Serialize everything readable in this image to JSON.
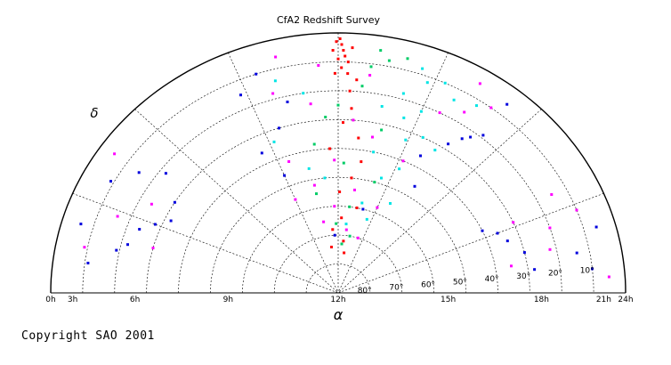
{
  "copyright": "Copyright SAO 2001",
  "chart_data": {
    "type": "scatter",
    "title": "CfA2 Redshift Survey",
    "xlabel": "α",
    "ylabel": "δ",
    "projection": "hemisphere (polar)",
    "x_ticks": [
      "24h",
      "21h",
      "18h",
      "15h",
      "12h",
      "9h",
      "6h",
      "3h",
      "0h"
    ],
    "y_ticks": [
      "10°",
      "20°",
      "30°",
      "40°",
      "50°",
      "60°",
      "70°",
      "80°"
    ],
    "xlim": [
      24,
      0
    ],
    "ylim": [
      0,
      90
    ],
    "grid": true,
    "colors": [
      "#ff0000",
      "#00cc66",
      "#00e5e5",
      "#0000dd",
      "#ff00ff"
    ],
    "series": [
      {
        "color": "#ff0000",
        "points": [
          [
            12.05,
            2
          ],
          [
            12.1,
            4
          ],
          [
            12.15,
            6
          ],
          [
            12.2,
            8
          ],
          [
            12.3,
            10
          ],
          [
            11.95,
            3
          ],
          [
            11.85,
            6
          ],
          [
            12.4,
            5
          ],
          [
            12.0,
            9
          ],
          [
            12.1,
            12
          ],
          [
            12.3,
            14
          ],
          [
            11.9,
            14
          ],
          [
            12.6,
            16
          ],
          [
            12.4,
            20
          ],
          [
            12.5,
            26
          ],
          [
            12.2,
            31
          ],
          [
            12.9,
            36
          ],
          [
            11.6,
            40
          ],
          [
            13.2,
            44
          ],
          [
            12.8,
            50
          ],
          [
            12.1,
            55
          ],
          [
            13.5,
            60
          ],
          [
            12.3,
            64
          ],
          [
            11.4,
            68
          ],
          [
            12.7,
            72
          ],
          [
            11.0,
            74
          ],
          [
            13.0,
            76
          ]
        ]
      },
      {
        "color": "#00cc66",
        "points": [
          [
            13.2,
            5
          ],
          [
            13.5,
            8
          ],
          [
            13.0,
            11
          ],
          [
            14.0,
            6
          ],
          [
            12.8,
            18
          ],
          [
            12.0,
            25
          ],
          [
            11.5,
            29
          ],
          [
            13.8,
            32
          ],
          [
            10.9,
            38
          ],
          [
            12.3,
            45
          ],
          [
            14.2,
            50
          ],
          [
            10.5,
            55
          ],
          [
            12.9,
            60
          ],
          [
            11.8,
            66
          ],
          [
            13.4,
            70
          ],
          [
            12.5,
            73
          ]
        ]
      },
      {
        "color": "#00e5e5",
        "points": [
          [
            14.5,
            8
          ],
          [
            14.8,
            12
          ],
          [
            15.3,
            10
          ],
          [
            14.2,
            18
          ],
          [
            15.0,
            22
          ],
          [
            14.5,
            26
          ],
          [
            15.8,
            14
          ],
          [
            13.6,
            24
          ],
          [
            14.9,
            33
          ],
          [
            15.5,
            30
          ],
          [
            10.8,
            20
          ],
          [
            10.0,
            14
          ],
          [
            13.7,
            40
          ],
          [
            15.2,
            43
          ],
          [
            14.5,
            48
          ],
          [
            11.2,
            50
          ],
          [
            15.7,
            55
          ],
          [
            13.8,
            58
          ],
          [
            12.8,
            66
          ],
          [
            14.6,
            63
          ],
          [
            16.2,
            32
          ],
          [
            9.2,
            34
          ],
          [
            10.4,
            46
          ],
          [
            16.5,
            12
          ]
        ]
      },
      {
        "color": "#0000dd",
        "points": [
          [
            17.0,
            22
          ],
          [
            17.3,
            19
          ],
          [
            16.8,
            24
          ],
          [
            16.5,
            28
          ],
          [
            15.8,
            36
          ],
          [
            17.2,
            6
          ],
          [
            9.5,
            10
          ],
          [
            8.8,
            15
          ],
          [
            10.2,
            22
          ],
          [
            9.6,
            30
          ],
          [
            8.5,
            36
          ],
          [
            9.0,
            46
          ],
          [
            4.2,
            30
          ],
          [
            3.4,
            32
          ],
          [
            3.0,
            28
          ],
          [
            2.6,
            24
          ],
          [
            1.9,
            22
          ],
          [
            1.6,
            19
          ],
          [
            4.5,
            15
          ],
          [
            3.8,
            9
          ],
          [
            2.2,
            6
          ],
          [
            5.0,
            22
          ],
          [
            1.0,
            11
          ],
          [
            20.6,
            40
          ],
          [
            21.0,
            36
          ],
          [
            21.5,
            34
          ],
          [
            22.2,
            30
          ],
          [
            23.0,
            28
          ],
          [
            22.6,
            14
          ],
          [
            23.2,
            10
          ],
          [
            21.9,
            6
          ],
          [
            14.0,
            60
          ],
          [
            11.6,
            70
          ],
          [
            16.4,
            46
          ]
        ]
      },
      {
        "color": "#ff00ff",
        "points": [
          [
            16.2,
            5
          ],
          [
            16.9,
            10
          ],
          [
            15.6,
            20
          ],
          [
            16.3,
            16
          ],
          [
            13.0,
            14
          ],
          [
            11.4,
            11
          ],
          [
            10.2,
            6
          ],
          [
            9.8,
            18
          ],
          [
            11.0,
            24
          ],
          [
            12.6,
            30
          ],
          [
            13.5,
            35
          ],
          [
            15.2,
            40
          ],
          [
            11.8,
            44
          ],
          [
            9.5,
            42
          ],
          [
            10.5,
            52
          ],
          [
            13.1,
            54
          ],
          [
            15.0,
            58
          ],
          [
            11.7,
            60
          ],
          [
            12.9,
            68
          ],
          [
            10.6,
            65
          ],
          [
            14.4,
            70
          ],
          [
            9.0,
            55
          ],
          [
            3.7,
            24
          ],
          [
            2.8,
            16
          ],
          [
            1.5,
            9
          ],
          [
            2.0,
            30
          ],
          [
            4.6,
            5
          ],
          [
            21.5,
            20
          ],
          [
            22.3,
            22
          ],
          [
            20.4,
            15
          ],
          [
            23.5,
            5
          ],
          [
            21.2,
            10
          ],
          [
            22.7,
            35
          ],
          [
            20.8,
            30
          ]
        ]
      }
    ]
  }
}
